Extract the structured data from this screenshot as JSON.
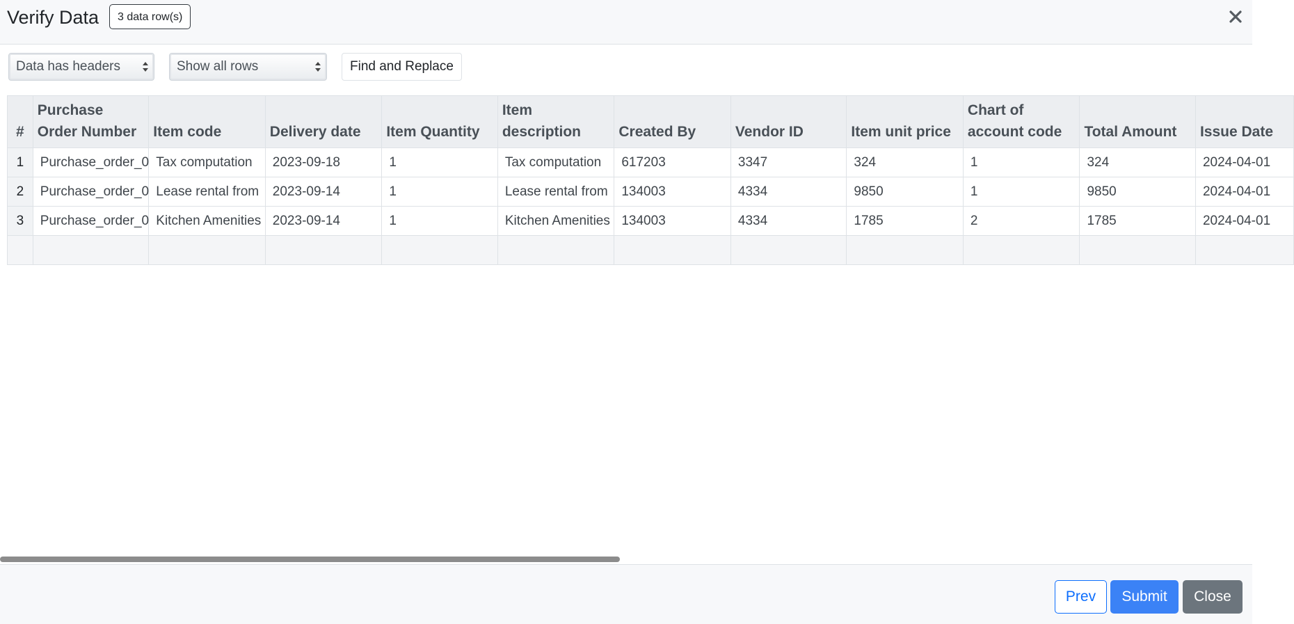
{
  "header": {
    "title": "Verify Data",
    "row_count_badge": "3 data row(s)",
    "close_icon": "close-x-icon"
  },
  "toolbar": {
    "header_select_value": "Data has headers",
    "rows_select_value": "Show all rows",
    "find_replace_label": "Find and Replace"
  },
  "table": {
    "columns": [
      "#",
      "Purchase Order Number",
      "Item code",
      "Delivery date",
      "Item Quantity",
      "Item description",
      "Created By",
      "Vendor ID",
      "Item unit price",
      "Chart of account code",
      "Total Amount",
      "Issue Date"
    ],
    "rows": [
      [
        "1",
        "Purchase_order_0",
        "Tax computation",
        "2023-09-18",
        "1",
        "Tax computation",
        "617203",
        "3347",
        "324",
        "1",
        "324",
        "2024-04-01"
      ],
      [
        "2",
        "Purchase_order_0",
        "Lease rental from",
        "2023-09-14",
        "1",
        "Lease rental from",
        "134003",
        "4334",
        "9850",
        "1",
        "9850",
        "2024-04-01"
      ],
      [
        "3",
        "Purchase_order_0",
        "Kitchen Amenities",
        "2023-09-14",
        "1",
        "Kitchen Amenities",
        "134003",
        "4334",
        "1785",
        "2",
        "1785",
        "2024-04-01"
      ],
      [
        "",
        "",
        "",
        "",
        "",
        "",
        "",
        "",
        "",
        "",
        "",
        ""
      ]
    ]
  },
  "footer": {
    "prev_label": "Prev",
    "submit_label": "Submit",
    "close_label": "Close"
  },
  "colors": {
    "primary": "#0d6efd",
    "submit": "#3b82f6",
    "secondary": "#6c757d",
    "header_bg": "#f7f8fa",
    "table_header_bg": "#eceef1"
  }
}
